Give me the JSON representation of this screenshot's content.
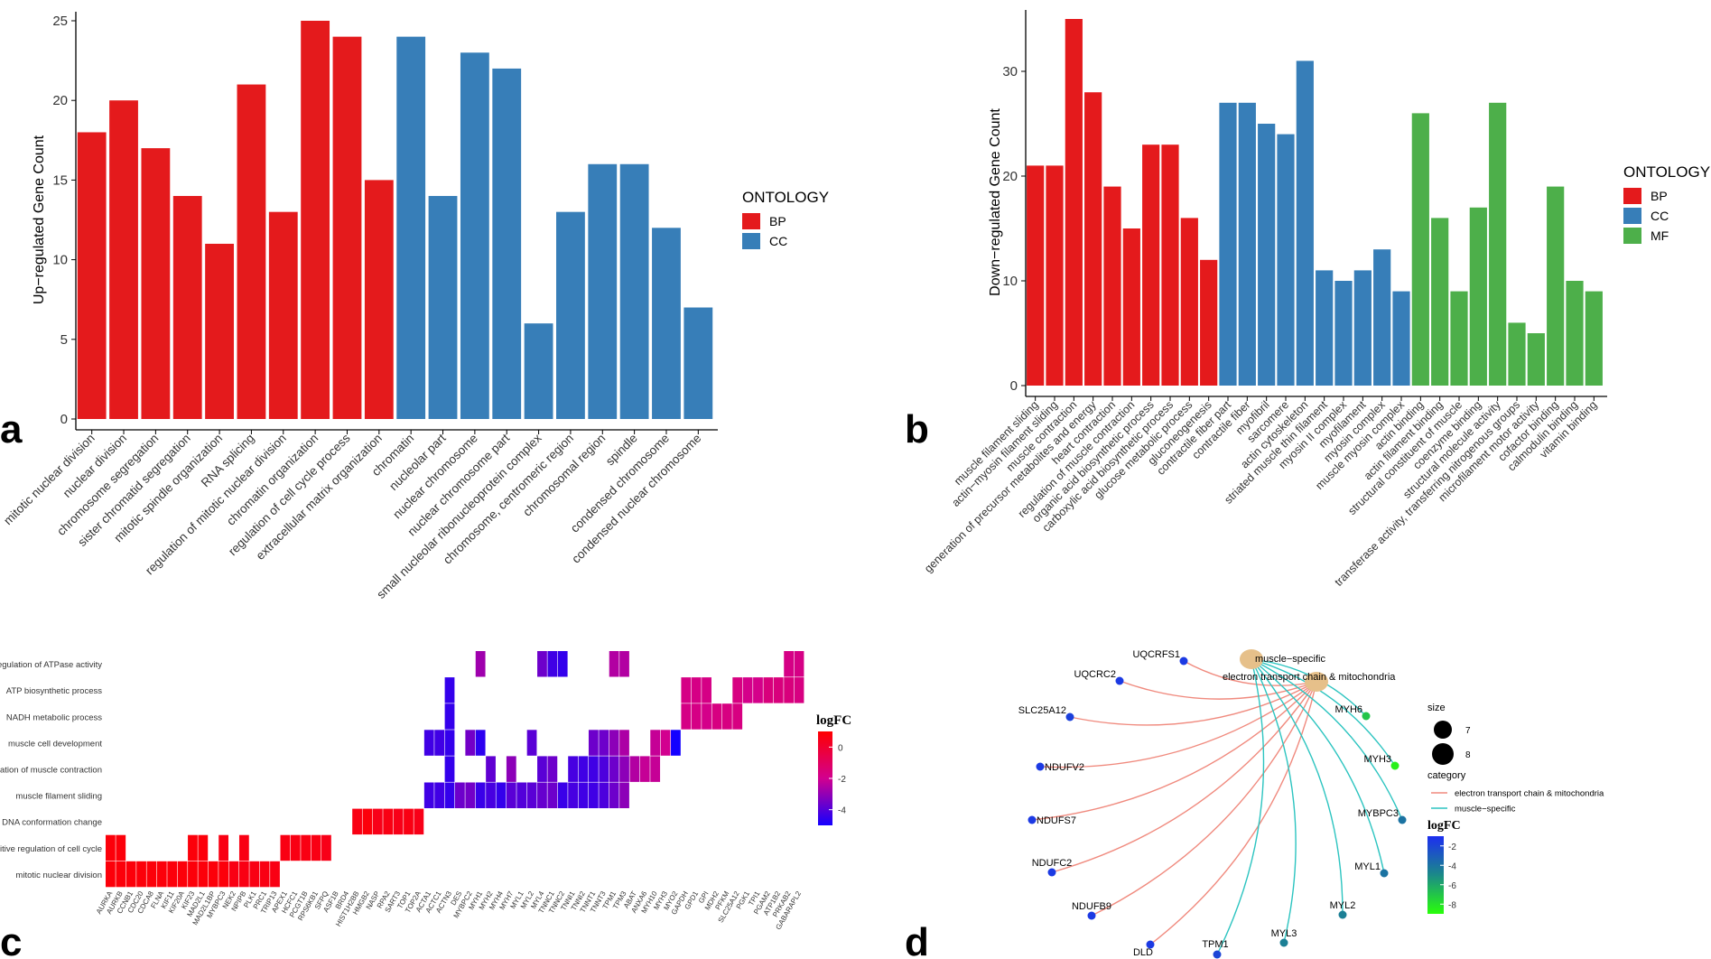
{
  "colors": {
    "BP": "#e41a1c",
    "CC": "#377eb8",
    "MF": "#4daf4a"
  },
  "panels": [
    {
      "letter": "a",
      "ylabel": "Up−regulated Gene Count",
      "ylim": [
        0,
        25
      ],
      "yticks": [
        0,
        5,
        10,
        15,
        20,
        25
      ],
      "legend": {
        "title": "ONTOLOGY",
        "items": [
          "BP",
          "CC"
        ]
      }
    },
    {
      "letter": "b",
      "ylabel": "Down−regulated Gene Count",
      "ylim": [
        0,
        35
      ],
      "yticks": [
        0,
        10,
        20,
        30
      ],
      "legend": {
        "title": "ONTOLOGY",
        "items": [
          "BP",
          "CC",
          "MF"
        ]
      }
    },
    {
      "letter": "c"
    },
    {
      "letter": "d"
    }
  ],
  "chart_data": [
    {
      "type": "bar",
      "ylabel": "Up−regulated Gene Count",
      "ylim": [
        0,
        25
      ],
      "categories": [
        "mitotic nuclear division",
        "nuclear division",
        "chromosome segregation",
        "sister chromatid segregation",
        "mitotic spindle organization",
        "RNA splicing",
        "regulation of mitotic nuclear division",
        "chromatin organization",
        "regulation of cell cycle process",
        "extracellular matrix organization",
        "chromatin",
        "nucleolar part",
        "nuclear chromosome",
        "nuclear chromosome part",
        "small nucleolar ribonucleoprotein complex",
        "chromosome, centromeric region",
        "chromosomal region",
        "spindle",
        "condensed chromosome",
        "condensed nuclear chromosome"
      ],
      "values": [
        18,
        20,
        17,
        14,
        11,
        21,
        13,
        25,
        24,
        15,
        24,
        14,
        23,
        22,
        6,
        13,
        16,
        16,
        12,
        7
      ],
      "ontology": [
        "BP",
        "BP",
        "BP",
        "BP",
        "BP",
        "BP",
        "BP",
        "BP",
        "BP",
        "BP",
        "CC",
        "CC",
        "CC",
        "CC",
        "CC",
        "CC",
        "CC",
        "CC",
        "CC",
        "CC"
      ]
    },
    {
      "type": "bar",
      "ylabel": "Down−regulated Gene Count",
      "ylim": [
        0,
        35
      ],
      "categories": [
        "muscle filament sliding",
        "actin−myosin filament sliding",
        "muscle contraction",
        "generation of precursor metabolites and energy",
        "heart contraction",
        "regulation of muscle contraction",
        "organic acid biosynthetic process",
        "carboxylic acid biosynthetic process",
        "glucose metabolic process",
        "gluconeogenesis",
        "contractile fiber part",
        "contractile fiber",
        "myofibril",
        "sarcomere",
        "actin cytoskeleton",
        "striated muscle thin filament",
        "myosin II complex",
        "myofilament",
        "myosin complex",
        "muscle myosin complex",
        "actin binding",
        "actin filament binding",
        "structural constituent of muscle",
        "coenzyme binding",
        "structural molecule activity",
        "transferase activity, transferring nitrogenous groups",
        "microfilament motor activity",
        "cofactor binding",
        "calmodulin binding",
        "vitamin binding"
      ],
      "values": [
        21,
        21,
        35,
        28,
        19,
        15,
        23,
        23,
        16,
        12,
        27,
        27,
        25,
        24,
        31,
        11,
        10,
        11,
        13,
        9,
        26,
        16,
        9,
        17,
        27,
        6,
        5,
        19,
        10,
        9
      ],
      "ontology": [
        "BP",
        "BP",
        "BP",
        "BP",
        "BP",
        "BP",
        "BP",
        "BP",
        "BP",
        "BP",
        "CC",
        "CC",
        "CC",
        "CC",
        "CC",
        "CC",
        "CC",
        "CC",
        "CC",
        "CC",
        "MF",
        "MF",
        "MF",
        "MF",
        "MF",
        "MF",
        "MF",
        "MF",
        "MF",
        "MF"
      ]
    },
    {
      "type": "heatmap",
      "legend_title": "logFC",
      "legend_ticks": [
        0,
        -2,
        -4
      ],
      "value_range": [
        -5,
        1
      ],
      "rows": [
        "regulation of ATPase activity",
        "ATP biosynthetic process",
        "NADH metabolic process",
        "muscle cell development",
        "regulation of muscle contraction",
        "muscle filament sliding",
        "DNA conformation change",
        "positive regulation of cell cycle",
        "mitotic nuclear division"
      ],
      "genes": [
        "AURKA",
        "AURKB",
        "CCNB1",
        "CDC20",
        "CDCA8",
        "FLNA",
        "KIF11",
        "KIF20A",
        "KIF23",
        "MAD2L1",
        "MAD2L1BP",
        "MYBPC3",
        "NEK2",
        "NPIPB",
        "PLK1",
        "PRC1",
        "TRIP13",
        "APEX1",
        "HCFC1",
        "PCGT1B",
        "RPS6KB1",
        "SFPQ",
        "ASF1B",
        "BRD4",
        "HIST1H2BB",
        "HMGB2",
        "NASP",
        "RPA2",
        "SART3",
        "TOP1",
        "TOP2A",
        "ACTA1",
        "ACTC1",
        "ACTN3",
        "DES",
        "MYBPC2",
        "MYH1",
        "MYH2",
        "MYH4",
        "MYH7",
        "MYL1",
        "MYL2",
        "MYL4",
        "TNNC1",
        "TNNC2",
        "TNNI1",
        "TNNI2",
        "TNNT1",
        "TNNT3",
        "TPM1",
        "TPM3",
        "ABAT",
        "ANXA6",
        "MYH10",
        "MYH3",
        "MYO2",
        "GAPDH",
        "GPD1",
        "GPI",
        "MDH2",
        "PFKM",
        "SLC25A12",
        "PGK1",
        "TPI1",
        "PGAM2",
        "ATP1B2",
        "PRKAB2",
        "GABARAPL2"
      ],
      "cells": [
        [
          0,
          0,
          0,
          0,
          0,
          0,
          0,
          0,
          0,
          0,
          0,
          0,
          0,
          0,
          0,
          0,
          0,
          0,
          0,
          0,
          0,
          0,
          0,
          0,
          0,
          0,
          0,
          0,
          0,
          0,
          0,
          0,
          0,
          0,
          0,
          0,
          -2.8,
          0,
          0,
          0,
          0,
          0,
          -3.6,
          -4.3,
          -4.5,
          0,
          0,
          0,
          0,
          -2.5,
          -2.5,
          0,
          0,
          0,
          0,
          0,
          0,
          0,
          0,
          0,
          0,
          0,
          0,
          0,
          0,
          0,
          -1.8,
          -1.8
        ],
        [
          0,
          0,
          0,
          0,
          0,
          0,
          0,
          0,
          0,
          0,
          0,
          0,
          0,
          0,
          0,
          0,
          0,
          0,
          0,
          0,
          0,
          0,
          0,
          0,
          0,
          0,
          0,
          0,
          0,
          0,
          0,
          0,
          0,
          -4.5,
          0,
          0,
          0,
          0,
          0,
          0,
          0,
          0,
          0,
          0,
          0,
          0,
          0,
          0,
          0,
          0,
          0,
          0,
          0,
          0,
          0,
          0,
          -1.8,
          -1.8,
          -1.8,
          0,
          0,
          -1.7,
          -1.9,
          -1.9,
          -1.6,
          -1.6,
          -1.6,
          -1.7
        ],
        [
          0,
          0,
          0,
          0,
          0,
          0,
          0,
          0,
          0,
          0,
          0,
          0,
          0,
          0,
          0,
          0,
          0,
          0,
          0,
          0,
          0,
          0,
          0,
          0,
          0,
          0,
          0,
          0,
          0,
          0,
          0,
          0,
          0,
          -4.5,
          0,
          0,
          0,
          0,
          0,
          0,
          0,
          0,
          0,
          0,
          0,
          0,
          0,
          0,
          0,
          0,
          0,
          0,
          0,
          0,
          0,
          0,
          -1.8,
          -1.8,
          -1.9,
          -1.7,
          -1.7,
          -1.7,
          0,
          0,
          0,
          0,
          0,
          0
        ],
        [
          0,
          0,
          0,
          0,
          0,
          0,
          0,
          0,
          0,
          0,
          0,
          0,
          0,
          0,
          0,
          0,
          0,
          0,
          0,
          0,
          0,
          0,
          0,
          0,
          0,
          0,
          0,
          0,
          0,
          0,
          0,
          -4.3,
          -4.3,
          -4.5,
          0,
          -3.5,
          -4.6,
          0,
          0,
          0,
          0,
          -3.9,
          0,
          0,
          0,
          0,
          0,
          -3.6,
          -3.6,
          -3.1,
          -2.6,
          0,
          0,
          -2.2,
          -2.0,
          -5.5,
          0,
          0,
          0,
          0,
          0,
          0,
          0,
          0,
          0,
          0,
          0,
          0
        ],
        [
          0,
          0,
          0,
          0,
          0,
          0,
          0,
          0,
          0,
          0,
          0,
          0,
          0,
          0,
          0,
          0,
          0,
          0,
          0,
          0,
          0,
          0,
          0,
          0,
          0,
          0,
          0,
          0,
          0,
          0,
          0,
          0,
          0,
          -4.5,
          0,
          0,
          0,
          -3.8,
          0,
          -3.1,
          0,
          0,
          -3.9,
          -3.6,
          0,
          -4.2,
          -4.3,
          -4.3,
          -4.1,
          -3.6,
          -3.1,
          -2.5,
          -2.2,
          -2.2,
          0,
          0,
          0,
          0,
          0,
          0,
          0,
          0,
          0,
          0,
          0,
          0,
          0,
          0
        ],
        [
          0,
          0,
          0,
          0,
          0,
          0,
          0,
          0,
          0,
          0,
          0,
          0,
          0,
          0,
          0,
          0,
          0,
          0,
          0,
          0,
          0,
          0,
          0,
          0,
          0,
          0,
          0,
          0,
          0,
          0,
          0,
          -4.3,
          -4.3,
          -4.5,
          -3.6,
          -3.5,
          -4.4,
          -4.2,
          -4.5,
          -3.9,
          -4.0,
          -3.9,
          -3.7,
          -3.6,
          -4.4,
          -4.2,
          -4.3,
          -4.3,
          -4.1,
          -3.6,
          -3.1,
          0,
          0,
          0,
          0,
          0,
          0,
          0,
          0,
          0,
          0,
          0,
          0,
          0,
          0,
          0,
          0,
          0
        ],
        [
          0,
          0,
          0,
          0,
          0,
          0,
          0,
          0,
          0,
          0,
          0,
          0,
          0,
          0,
          0,
          0,
          0,
          0,
          0,
          0,
          0,
          0,
          0,
          0,
          0.6,
          0.8,
          0.5,
          0.6,
          0.5,
          0.6,
          0.5,
          0,
          0,
          0,
          0,
          0,
          0,
          0,
          0,
          0,
          0,
          0,
          0,
          0,
          0,
          0,
          0,
          0,
          0,
          0,
          0,
          0,
          0,
          0,
          0,
          0,
          0,
          0,
          0,
          0,
          0,
          0,
          0,
          0,
          0,
          0,
          0,
          0
        ],
        [
          0.8,
          0.8,
          0,
          0,
          0,
          0,
          0,
          0,
          0.8,
          0.8,
          0,
          0.6,
          0,
          0.6,
          0,
          0,
          0,
          0.6,
          0.6,
          0.6,
          0.6,
          0.5,
          0,
          0,
          0,
          0,
          0,
          0,
          0,
          0,
          0,
          0,
          0,
          0,
          0,
          0,
          0,
          0,
          0,
          0,
          0,
          0,
          0,
          0,
          0,
          0,
          0,
          0,
          0,
          0,
          0,
          0,
          0,
          0,
          0,
          0,
          0,
          0,
          0,
          0,
          0,
          0,
          0,
          0,
          0,
          0,
          0,
          0
        ],
        [
          0.8,
          0.8,
          0.8,
          0.8,
          0.8,
          0.8,
          0.8,
          0.8,
          0.8,
          0.8,
          0.8,
          0.8,
          0.6,
          0.6,
          0.6,
          0.6,
          0.6,
          0,
          0,
          0,
          0,
          0,
          0,
          0,
          0,
          0,
          0,
          0,
          0,
          0,
          0,
          0,
          0,
          0,
          0,
          0,
          0,
          0,
          0,
          0,
          0,
          0,
          0,
          0,
          0,
          0,
          0,
          0,
          0,
          0,
          0,
          0,
          0,
          0,
          0,
          0,
          0,
          0,
          0,
          0,
          0,
          0,
          0,
          0,
          0,
          0,
          0,
          0
        ]
      ]
    },
    {
      "type": "network",
      "categories": [
        {
          "name": "muscle−specific",
          "color": "#2cc4c0"
        },
        {
          "name": "electron transport chain & mitochondria",
          "color": "#f08a7e"
        }
      ],
      "size_legend": {
        "title": "size",
        "values": [
          7,
          8
        ]
      },
      "category_legend_title": "category",
      "legend_items": [
        "electron transport chain & mitochondria",
        "muscle−specific"
      ],
      "logfc_legend": {
        "title": "logFC",
        "ticks": [
          -2,
          -4,
          -6,
          -8
        ],
        "range": [
          -9,
          -1
        ]
      },
      "genes": [
        {
          "name": "UQCRFS1",
          "logFC": -1.5,
          "category": 1
        },
        {
          "name": "UQCRC2",
          "logFC": -1.5,
          "category": 1
        },
        {
          "name": "SLC25A12",
          "logFC": -1.8,
          "category": 1
        },
        {
          "name": "NDUFV2",
          "logFC": -1.5,
          "category": 1
        },
        {
          "name": "NDUFS7",
          "logFC": -1.5,
          "category": 1
        },
        {
          "name": "NDUFC2",
          "logFC": -1.5,
          "category": 1
        },
        {
          "name": "NDUFB9",
          "logFC": -1.5,
          "category": 1
        },
        {
          "name": "DLD",
          "logFC": -1.5,
          "category": 1
        },
        {
          "name": "TPM1",
          "logFC": -2.0,
          "category": 0
        },
        {
          "name": "MYL3",
          "logFC": -4.5,
          "category": 0
        },
        {
          "name": "MYL2",
          "logFC": -4.5,
          "category": 0
        },
        {
          "name": "MYL1",
          "logFC": -4.0,
          "category": 0
        },
        {
          "name": "MYBPC3",
          "logFC": -4.0,
          "category": 0
        },
        {
          "name": "MYH3",
          "logFC": -8.5,
          "category": 0
        },
        {
          "name": "MYH6",
          "logFC": -7.0,
          "category": 0
        }
      ]
    }
  ]
}
